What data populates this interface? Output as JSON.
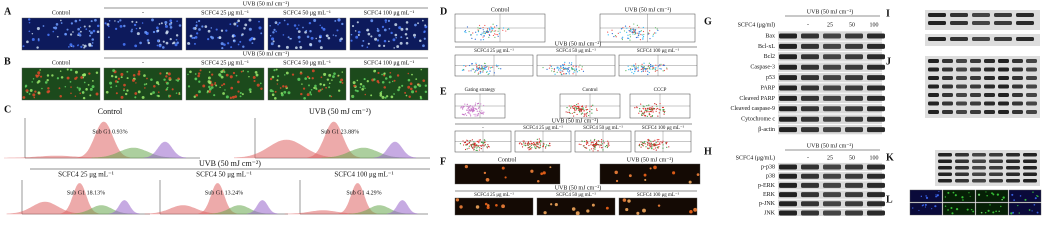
{
  "panels": {
    "A": {
      "label": "A",
      "control": "Control",
      "treatment": "UVB (50 mJ cm⁻²)",
      "groups": [
        "-",
        "SCFC4 25 μg mL⁻¹",
        "SCFC4 50 μg mL⁻¹",
        "SCFC4 100 μg mL⁻¹"
      ]
    },
    "B": {
      "label": "B",
      "control": "Control",
      "treatment": "UVB (50 mJ cm⁻²)",
      "groups": [
        "-",
        "SCFC4 25 μg mL⁻¹",
        "SCFC4 50 μg mL⁻¹",
        "SCFC4 100 μg mL⁻¹"
      ]
    },
    "C": {
      "label": "C",
      "control": "Control",
      "control_value": "Sub G1 0.93%",
      "uvb": "UVB (50 mJ cm⁻²)",
      "uvb_value": "Sub G1 23.88%",
      "treatment": "UVB (50 mJ cm⁻²)",
      "groups": [
        "SCFC4 25 μg mL⁻¹",
        "SCFC4 50 μg mL⁻¹",
        "SCFC4 100 μg mL⁻¹"
      ],
      "values": [
        "Sub G1 18.13%",
        "Sub G1 13.24%",
        "Sub G1 4.29%"
      ]
    },
    "D": {
      "label": "D",
      "control": "Control",
      "uvb": "UVB (50 mJ cm⁻²)",
      "treatment": "UVB (50 mJ cm⁻²)",
      "groups": [
        "SCFC4 25 μg mL⁻¹",
        "SCFC4 50 μg mL⁻¹",
        "SCFC4 100 μg mL⁻¹"
      ]
    },
    "E": {
      "label": "E",
      "gating": "Gating strategy",
      "control": "Control",
      "cccp": "CCCP",
      "treatment": "UVB (50 mJ cm⁻²)",
      "groups": [
        "-",
        "SCFC4 25 μg mL⁻¹",
        "SCFC4 50 μg mL⁻¹",
        "SCFC4 100 μg mL⁻¹"
      ]
    },
    "F": {
      "label": "F",
      "control": "Control",
      "uvb": "UVB (50 mJ cm⁻²)",
      "treatment": "UVB (50 mJ cm⁻²)",
      "groups": [
        "SCFC4 25 μg mL⁻¹",
        "SCFC4 50 μg mL⁻¹",
        "SCFC4 100 μg mL⁻¹"
      ]
    },
    "G": {
      "label": "G",
      "treatment": "UVB (50 mJ cm⁻²)",
      "dose_label": "SCFC4 (μg/ml)",
      "doses": [
        "-",
        "25",
        "50",
        "100"
      ],
      "proteins": [
        "Bax",
        "Bcl-xL",
        "Bcl2",
        "Caspase-3",
        "p53",
        "PARP",
        "Cleaved PARP",
        "Cleaved caspase-9",
        "Cytochrome c",
        "β-actin"
      ]
    },
    "H": {
      "label": "H",
      "treatment": "UVB (50 mJ cm⁻²)",
      "dose_label": "SCFC4 (μg/mL)",
      "doses": [
        "-",
        "25",
        "50",
        "100"
      ],
      "proteins": [
        "p-p38",
        "p38",
        "p-ERK",
        "ERK",
        "p-JNK",
        "JNK"
      ]
    },
    "I": {
      "label": "I"
    },
    "J": {
      "label": "J"
    },
    "K": {
      "label": "K"
    },
    "L": {
      "label": "L"
    }
  }
}
